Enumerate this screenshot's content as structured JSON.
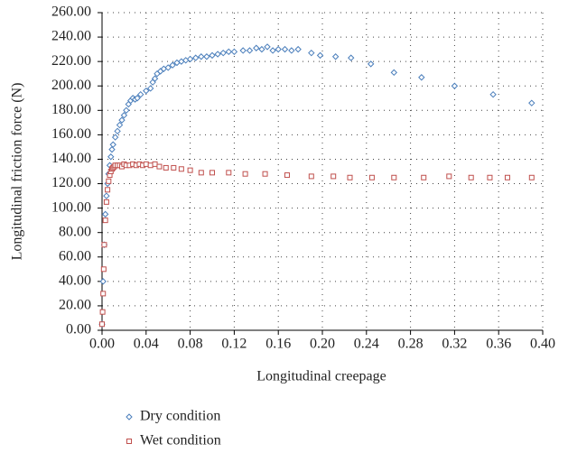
{
  "chart_data": {
    "type": "scatter",
    "x_label": "Longitudinal creepage",
    "y_label": "Longitudinal friction force (N)",
    "xlim": [
      0,
      0.4
    ],
    "xticks": [
      {
        "value": 0,
        "label": "0.00"
      },
      0.04,
      0.08,
      0.12,
      0.16,
      {
        "value": 0.2,
        "label": "0.20"
      },
      0.24,
      0.28,
      0.32,
      0.36,
      {
        "value": 0.4,
        "label": "0.40"
      }
    ],
    "ylim": [
      0,
      260
    ],
    "yticks": [
      {
        "value": 0,
        "label": "0.00"
      },
      {
        "value": 20,
        "label": "20.00"
      },
      {
        "value": 40,
        "label": "40.00"
      },
      {
        "value": 60,
        "label": "60.00"
      },
      {
        "value": 80,
        "label": "80.00"
      },
      {
        "value": 100,
        "label": "100.00"
      },
      {
        "value": 120,
        "label": "120.00"
      },
      {
        "value": 140,
        "label": "140.00"
      },
      {
        "value": 160,
        "label": "160.00"
      },
      {
        "value": 180,
        "label": "180.00"
      },
      {
        "value": 200,
        "label": "200.00"
      },
      {
        "value": 220,
        "label": "220.00"
      },
      {
        "value": 240,
        "label": "240.00"
      },
      {
        "value": 260,
        "label": "260.00"
      }
    ],
    "grid": true,
    "legend": "bottom-left",
    "series": [
      {
        "name": "Dry condition",
        "color": "#4a7ebb",
        "marker": "diamond",
        "x": [
          0.0,
          0.001,
          0.002,
          0.003,
          0.004,
          0.005,
          0.006,
          0.007,
          0.008,
          0.009,
          0.01,
          0.012,
          0.014,
          0.016,
          0.018,
          0.02,
          0.022,
          0.024,
          0.026,
          0.028,
          0.03,
          0.032,
          0.035,
          0.04,
          0.044,
          0.046,
          0.048,
          0.05,
          0.053,
          0.056,
          0.06,
          0.064,
          0.068,
          0.072,
          0.076,
          0.08,
          0.085,
          0.09,
          0.095,
          0.1,
          0.105,
          0.11,
          0.115,
          0.12,
          0.128,
          0.134,
          0.14,
          0.145,
          0.15,
          0.155,
          0.16,
          0.166,
          0.172,
          0.178,
          0.19,
          0.198,
          0.212,
          0.226,
          0.244,
          0.265,
          0.29,
          0.32,
          0.355,
          0.39
        ],
        "values": [
          5,
          40,
          70,
          95,
          110,
          120,
          128,
          135,
          142,
          148,
          152,
          158,
          163,
          168,
          172,
          176,
          180,
          185,
          188,
          190,
          189,
          190,
          193,
          196,
          198,
          203,
          206,
          210,
          212,
          214,
          215,
          217,
          219,
          220,
          221,
          222,
          223,
          224,
          224,
          225,
          226,
          227,
          228,
          228,
          229,
          229,
          231,
          230,
          232,
          229,
          230,
          230,
          229,
          230,
          227,
          225,
          224,
          223,
          218,
          211,
          207,
          200,
          193,
          186
        ]
      },
      {
        "name": "Wet condition",
        "color": "#c0504d",
        "marker": "square",
        "x": [
          0,
          0.0005,
          0.001,
          0.0015,
          0.002,
          0.003,
          0.004,
          0.005,
          0.006,
          0.007,
          0.008,
          0.009,
          0.01,
          0.011,
          0.012,
          0.014,
          0.016,
          0.018,
          0.02,
          0.022,
          0.025,
          0.028,
          0.031,
          0.034,
          0.037,
          0.04,
          0.044,
          0.048,
          0.052,
          0.058,
          0.065,
          0.072,
          0.08,
          0.09,
          0.1,
          0.115,
          0.13,
          0.148,
          0.168,
          0.19,
          0.21,
          0.225,
          0.245,
          0.265,
          0.292,
          0.315,
          0.335,
          0.352,
          0.368,
          0.39
        ],
        "values": [
          5,
          15,
          30,
          50,
          70,
          90,
          105,
          115,
          122,
          127,
          130,
          132,
          133,
          134,
          135,
          135,
          135,
          134,
          136,
          135,
          135,
          136,
          135,
          136,
          135,
          136,
          135,
          136,
          134,
          133,
          133,
          132,
          131,
          129,
          129,
          129,
          128,
          128,
          127,
          126,
          126,
          125,
          125,
          125,
          125,
          126,
          125,
          125,
          125,
          125
        ]
      }
    ]
  }
}
